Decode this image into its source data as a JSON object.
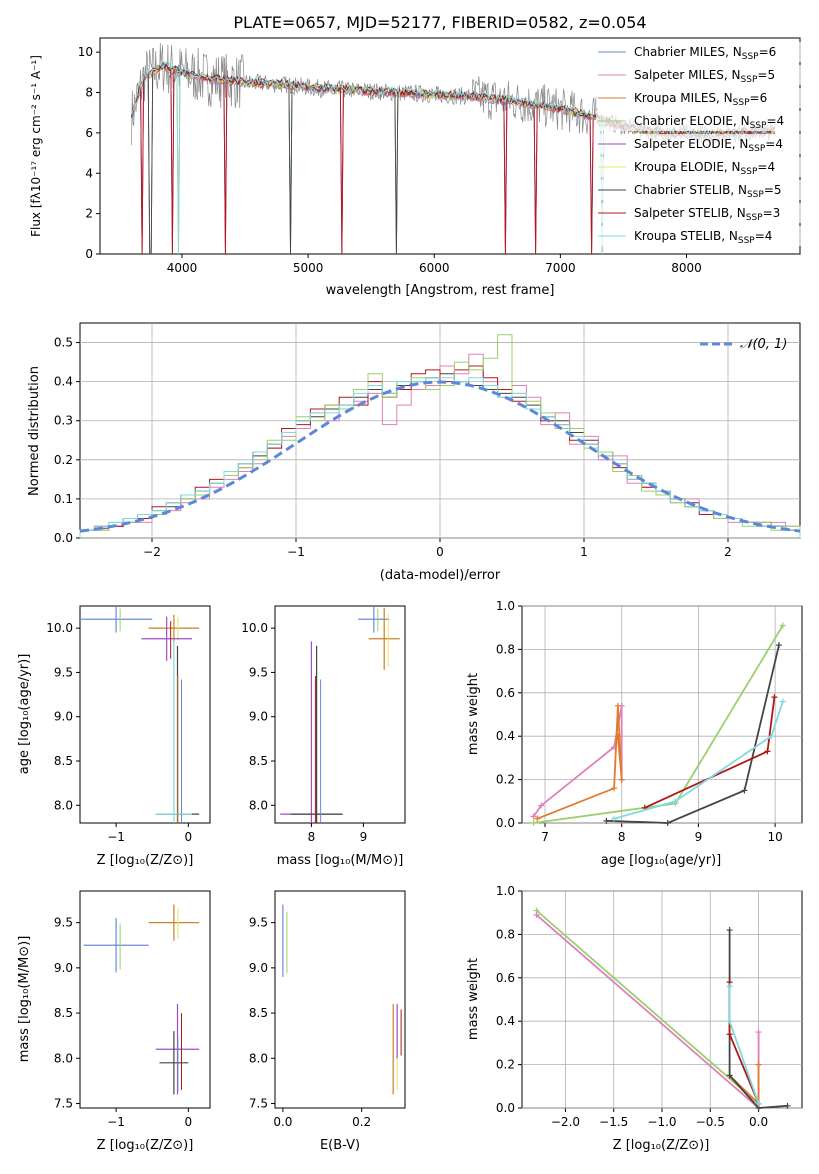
{
  "colors": {
    "s1": "#6a8bd8",
    "s2": "#e27fba",
    "s3": "#c9822b",
    "s4": "#9ad06a",
    "s5": "#9f4cc8",
    "s6": "#e8e46a",
    "s7": "#444444",
    "s8": "#b01818",
    "s9": "#7fd9e0",
    "data": "#888888",
    "dashed": "#5b88d8",
    "orange": "#e07b2e"
  },
  "legend_labels": [
    "Chabrier MILES",
    "Salpeter MILES",
    "Kroupa MILES",
    "Chabrier ELODIE",
    "Salpeter ELODIE",
    "Kroupa ELODIE",
    "Chabrier STELIB",
    "Salpeter STELIB",
    "Kroupa STELIB"
  ],
  "legend_n": [
    "6",
    "5",
    "6",
    "4",
    "4",
    "4",
    "5",
    "3",
    "4"
  ],
  "legend_n_prefix": "N",
  "legend_n_sub": "SSP",
  "normal_label": "𝒩(0, 1)",
  "chart_data": [
    {
      "type": "line",
      "title": "PLATE=0657, MJD=52177, FIBERID=0582, z=0.054",
      "xlabel": "wavelength [Angstrom, rest frame]",
      "ylabel": "Flux [fλ10⁻¹⁷ erg cm⁻² s⁻¹ A⁻¹]",
      "xlim": [
        3350,
        8900
      ],
      "ylim": [
        0,
        10.7
      ],
      "xticks": [
        4000,
        5000,
        6000,
        7000,
        8000
      ],
      "yticks": [
        0,
        2,
        4,
        6,
        8,
        10
      ],
      "grid": false,
      "legend_position": "upper-right",
      "continuum_x": [
        3600,
        3700,
        3850,
        4000,
        4200,
        4500,
        4800,
        5100,
        5400,
        5700,
        6000,
        6300,
        6600,
        6900,
        7200,
        7500,
        7800,
        8100,
        8400,
        8700
      ],
      "continuum_y": [
        6.8,
        8.8,
        9.3,
        9.0,
        8.7,
        8.5,
        8.4,
        8.2,
        8.1,
        8.0,
        7.9,
        7.8,
        7.6,
        7.3,
        6.9,
        6.3,
        6.0,
        5.95,
        6.0,
        6.1
      ],
      "absorption_lines": [
        3680,
        3750,
        3920,
        3970,
        4340,
        4860,
        5270,
        5700,
        6563,
        6800,
        7250,
        7330
      ]
    },
    {
      "type": "bar",
      "xlabel": "(data-model)/error",
      "ylabel": "Normed distribution",
      "xlim": [
        -2.5,
        2.5
      ],
      "ylim": [
        0,
        0.55
      ],
      "xticks": [
        -2,
        -1,
        0,
        1,
        2
      ],
      "yticks": [
        0.0,
        0.1,
        0.2,
        0.3,
        0.4,
        0.5
      ],
      "grid": true,
      "legend_position": "upper-right",
      "bin_width": 0.1,
      "x": [
        -2.45,
        -2.35,
        -2.25,
        -2.15,
        -2.05,
        -1.95,
        -1.85,
        -1.75,
        -1.65,
        -1.55,
        -1.45,
        -1.35,
        -1.25,
        -1.15,
        -1.05,
        -0.95,
        -0.85,
        -0.75,
        -0.65,
        -0.55,
        -0.45,
        -0.35,
        -0.25,
        -0.15,
        -0.05,
        0.05,
        0.15,
        0.25,
        0.35,
        0.45,
        0.55,
        0.65,
        0.75,
        0.85,
        0.95,
        1.05,
        1.15,
        1.25,
        1.35,
        1.45,
        1.55,
        1.65,
        1.75,
        1.85,
        1.95,
        2.05,
        2.15,
        2.25,
        2.35,
        2.45
      ],
      "series": [
        {
          "values": [
            0.02,
            0.025,
            0.03,
            0.04,
            0.05,
            0.07,
            0.08,
            0.1,
            0.12,
            0.14,
            0.16,
            0.19,
            0.21,
            0.24,
            0.27,
            0.3,
            0.31,
            0.33,
            0.34,
            0.36,
            0.38,
            0.37,
            0.39,
            0.4,
            0.41,
            0.42,
            0.4,
            0.39,
            0.38,
            0.37,
            0.36,
            0.34,
            0.31,
            0.3,
            0.27,
            0.25,
            0.22,
            0.19,
            0.16,
            0.14,
            0.12,
            0.1,
            0.09,
            0.07,
            0.06,
            0.05,
            0.04,
            0.03,
            0.03,
            0.02
          ]
        },
        {
          "values": [
            0.02,
            0.02,
            0.03,
            0.04,
            0.04,
            0.06,
            0.07,
            0.09,
            0.1,
            0.13,
            0.15,
            0.17,
            0.19,
            0.23,
            0.26,
            0.28,
            0.32,
            0.3,
            0.33,
            0.35,
            0.37,
            0.29,
            0.34,
            0.38,
            0.39,
            0.44,
            0.42,
            0.47,
            0.4,
            0.36,
            0.39,
            0.36,
            0.29,
            0.32,
            0.24,
            0.26,
            0.2,
            0.21,
            0.14,
            0.13,
            0.11,
            0.09,
            0.1,
            0.07,
            0.06,
            0.04,
            0.04,
            0.03,
            0.04,
            0.03
          ]
        },
        {
          "values": [
            0.02,
            0.03,
            0.03,
            0.05,
            0.05,
            0.08,
            0.09,
            0.11,
            0.13,
            0.15,
            0.17,
            0.18,
            0.22,
            0.23,
            0.28,
            0.29,
            0.33,
            0.34,
            0.36,
            0.34,
            0.4,
            0.36,
            0.38,
            0.42,
            0.43,
            0.4,
            0.43,
            0.44,
            0.41,
            0.38,
            0.35,
            0.33,
            0.3,
            0.29,
            0.25,
            0.24,
            0.21,
            0.18,
            0.15,
            0.13,
            0.11,
            0.1,
            0.08,
            0.06,
            0.05,
            0.05,
            0.04,
            0.04,
            0.03,
            0.02
          ]
        },
        {
          "values": [
            0.02,
            0.02,
            0.04,
            0.04,
            0.06,
            0.06,
            0.09,
            0.1,
            0.11,
            0.14,
            0.16,
            0.18,
            0.2,
            0.25,
            0.25,
            0.31,
            0.3,
            0.34,
            0.33,
            0.38,
            0.42,
            0.36,
            0.4,
            0.41,
            0.38,
            0.39,
            0.45,
            0.43,
            0.46,
            0.52,
            0.37,
            0.35,
            0.32,
            0.28,
            0.28,
            0.23,
            0.22,
            0.17,
            0.16,
            0.12,
            0.11,
            0.09,
            0.08,
            0.07,
            0.05,
            0.05,
            0.03,
            0.04,
            0.02,
            0.03
          ]
        },
        {
          "values": [
            0.02,
            0.03,
            0.04,
            0.05,
            0.06,
            0.07,
            0.09,
            0.11,
            0.12,
            0.14,
            0.17,
            0.19,
            0.22,
            0.24,
            0.27,
            0.3,
            0.32,
            0.32,
            0.34,
            0.37,
            0.39,
            0.37,
            0.4,
            0.4,
            0.41,
            0.41,
            0.4,
            0.41,
            0.39,
            0.36,
            0.37,
            0.33,
            0.31,
            0.29,
            0.26,
            0.24,
            0.21,
            0.19,
            0.15,
            0.14,
            0.12,
            0.1,
            0.08,
            0.07,
            0.06,
            0.05,
            0.04,
            0.03,
            0.03,
            0.02
          ]
        }
      ],
      "normal_mu": 0,
      "normal_sigma": 1
    },
    {
      "type": "scatter",
      "xlabel": "Z [log₁₀(Z/Z⊙)]",
      "ylabel": "age  [log₁₀(age/yr)]",
      "xlim": [
        -1.5,
        0.3
      ],
      "ylim": [
        7.8,
        10.25
      ],
      "xticks": [
        -1,
        0
      ],
      "yticks": [
        8.0,
        8.5,
        9.0,
        9.5,
        10.0
      ],
      "grid": false,
      "points": [
        {
          "x": -1.0,
          "y": 10.1,
          "xerr": 0.5,
          "yerr": 0.15
        },
        {
          "x": -0.2,
          "y": 10.0,
          "xerr": 0.35,
          "yerr": 0.15
        },
        {
          "x": -0.3,
          "y": 9.88,
          "xerr": 0.35,
          "yerr": 0.25
        },
        {
          "x": -0.15,
          "y": 7.9,
          "xerr": 0.3,
          "yerr": 1.9
        },
        {
          "x": -0.2,
          "y": 7.9,
          "xerr": 0.25,
          "yerr": 1.95
        }
      ]
    },
    {
      "type": "scatter",
      "xlabel": "mass [log₁₀(M/M⊙)]",
      "ylabel": "",
      "xlim": [
        7.3,
        9.8
      ],
      "ylim": [
        7.8,
        10.25
      ],
      "xticks": [
        8,
        9
      ],
      "yticks": [
        8.0,
        8.5,
        9.0,
        9.5,
        10.0
      ],
      "grid": false,
      "points": [
        {
          "x": 9.2,
          "y": 10.1,
          "xerr": 0.3,
          "yerr": 0.15
        },
        {
          "x": 9.4,
          "y": 9.88,
          "xerr": 0.3,
          "yerr": 0.35
        },
        {
          "x": 8.0,
          "y": 7.9,
          "xerr": 0.6,
          "yerr": 1.95
        },
        {
          "x": 8.1,
          "y": 7.9,
          "xerr": 0.5,
          "yerr": 1.9
        }
      ]
    },
    {
      "type": "line",
      "xlabel": "age  [log₁₀(age/yr)]",
      "ylabel": "mass weight",
      "xlim": [
        6.7,
        10.35
      ],
      "ylim": [
        0,
        1.0
      ],
      "xticks": [
        7,
        8,
        9,
        10
      ],
      "yticks": [
        0.0,
        0.2,
        0.4,
        0.6,
        0.8,
        1.0
      ],
      "grid": true,
      "series": [
        {
          "x": [
            6.85,
            8.7,
            10.1
          ],
          "y": [
            0.0,
            0.09,
            0.91
          ]
        },
        {
          "x": [
            6.85,
            6.95,
            7.9,
            8.0,
            8.0
          ],
          "y": [
            0.03,
            0.08,
            0.35,
            0.54,
            0.2
          ]
        },
        {
          "x": [
            6.9,
            7.9,
            7.95,
            8.0,
            7.95
          ],
          "y": [
            0.02,
            0.16,
            0.54,
            0.2,
            0.4
          ]
        },
        {
          "x": [
            7.8,
            8.6,
            9.6,
            10.05
          ],
          "y": [
            0.01,
            0.0,
            0.15,
            0.82
          ]
        },
        {
          "x": [
            8.3,
            9.9,
            9.99
          ],
          "y": [
            0.07,
            0.33,
            0.58
          ]
        },
        {
          "x": [
            7.9,
            8.7,
            9.95,
            10.1
          ],
          "y": [
            0.02,
            0.1,
            0.4,
            0.56
          ]
        }
      ]
    },
    {
      "type": "scatter",
      "xlabel": "Z [log₁₀(Z/Z⊙)]",
      "ylabel": "mass [log₁₀(M/M⊙)]",
      "xlim": [
        -1.5,
        0.3
      ],
      "ylim": [
        7.45,
        9.85
      ],
      "xticks": [
        -1,
        0
      ],
      "yticks": [
        7.5,
        8.0,
        8.5,
        9.0,
        9.5
      ],
      "grid": false,
      "points": [
        {
          "x": -1.0,
          "y": 9.25,
          "xerr": 0.45,
          "yerr": 0.3
        },
        {
          "x": -0.2,
          "y": 9.5,
          "xerr": 0.35,
          "yerr": 0.2
        },
        {
          "x": -0.15,
          "y": 8.1,
          "xerr": 0.3,
          "yerr": 0.5
        },
        {
          "x": -0.2,
          "y": 7.95,
          "xerr": 0.2,
          "yerr": 0.35
        }
      ]
    },
    {
      "type": "scatter",
      "xlabel": "E(B-V)",
      "ylabel": "",
      "xlim": [
        -0.02,
        0.31
      ],
      "ylim": [
        7.45,
        9.85
      ],
      "xticks": [
        0.0,
        0.2
      ],
      "yticks": [
        7.5,
        8.0,
        8.5,
        9.0,
        9.5
      ],
      "grid": false,
      "points": [
        {
          "x": 0.0,
          "y": 9.3,
          "xerr": 0.0,
          "yerr": 0.4
        },
        {
          "x": 0.28,
          "y": 8.1,
          "xerr": 0.0,
          "yerr": 0.5
        },
        {
          "x": 0.29,
          "y": 8.3,
          "xerr": 0.0,
          "yerr": 0.3
        }
      ]
    },
    {
      "type": "line",
      "xlabel": "Z [log₁₀(Z/Z⊙)]",
      "ylabel": "mass weight",
      "xlim": [
        -2.45,
        0.45
      ],
      "ylim": [
        0,
        1.0
      ],
      "xticks": [
        -2.0,
        -1.5,
        -1.0,
        -0.5,
        0.0
      ],
      "yticks": [
        0.0,
        0.2,
        0.4,
        0.6,
        0.8,
        1.0
      ],
      "grid": true,
      "series": [
        {
          "x": [
            -2.3,
            0.0
          ],
          "y": [
            0.91,
            0.02
          ]
        },
        {
          "x": [
            -2.3,
            0.0,
            0.0
          ],
          "y": [
            0.89,
            0.0,
            0.35
          ]
        },
        {
          "x": [
            -0.3,
            0.0,
            0.0
          ],
          "y": [
            0.15,
            0.02,
            0.2
          ]
        },
        {
          "x": [
            -0.3,
            -0.3,
            0.0,
            0.3
          ],
          "y": [
            0.82,
            0.15,
            0.0,
            0.01
          ]
        },
        {
          "x": [
            -0.3,
            -0.3,
            0.0
          ],
          "y": [
            0.58,
            0.34,
            0.02
          ]
        },
        {
          "x": [
            -0.3,
            -0.3,
            0.0
          ],
          "y": [
            0.56,
            0.4,
            0.02
          ]
        }
      ]
    }
  ]
}
